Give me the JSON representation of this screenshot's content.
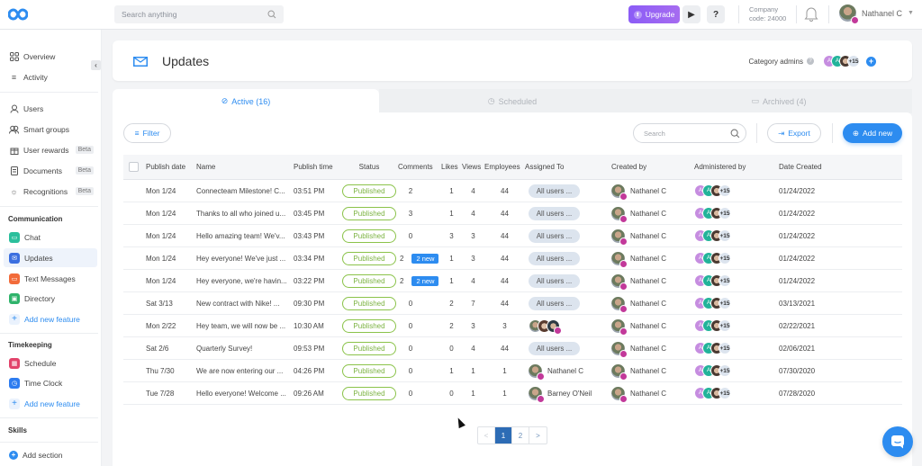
{
  "topbar": {
    "search_placeholder": "Search anything",
    "upgrade_label": "Upgrade",
    "play_label": "▶",
    "help_label": "?",
    "company_label": "Company",
    "company_code": "code: 24000",
    "user_name": "Nathanel C"
  },
  "sidebar": {
    "collapse_icon": "‹",
    "top_items": [
      {
        "label": "Overview",
        "icon": "grid-icon"
      },
      {
        "label": "Activity",
        "icon": "list-icon"
      }
    ],
    "admin_items": [
      {
        "label": "Users",
        "icon": "user-icon"
      },
      {
        "label": "Smart groups",
        "icon": "users-icon"
      },
      {
        "label": "User rewards",
        "icon": "gift-icon",
        "badge": "Beta"
      },
      {
        "label": "Documents",
        "icon": "document-icon",
        "badge": "Beta"
      },
      {
        "label": "Recognitions",
        "icon": "award-icon",
        "badge": "Beta"
      }
    ],
    "communication": {
      "title": "Communication",
      "items": [
        {
          "label": "Chat",
          "color": "#2bbf9c"
        },
        {
          "label": "Updates",
          "color": "#3b6fe0",
          "active": true
        },
        {
          "label": "Text Messages",
          "color": "#f26b3a"
        },
        {
          "label": "Directory",
          "color": "#2fb36b"
        }
      ],
      "add_label": "Add new feature"
    },
    "timekeeping": {
      "title": "Timekeeping",
      "items": [
        {
          "label": "Schedule",
          "color": "#e2436b"
        },
        {
          "label": "Time Clock",
          "color": "#2d7cf0"
        }
      ],
      "add_label": "Add new feature"
    },
    "skills": {
      "title": "Skills"
    },
    "add_section_label": "Add section"
  },
  "header": {
    "title": "Updates",
    "category_admins_label": "Category admins",
    "admins_more": "+15"
  },
  "tabs": [
    {
      "label": "Active (16)",
      "active": true
    },
    {
      "label": "Scheduled",
      "active": false
    },
    {
      "label": "Archived (4)",
      "active": false
    }
  ],
  "toolbar": {
    "filter_label": "Filter",
    "search_placeholder": "Search",
    "export_label": "Export",
    "add_new_label": "Add new"
  },
  "table": {
    "columns": [
      "Publish date",
      "Name",
      "Publish time",
      "Status",
      "Comments",
      "Likes",
      "Views",
      "Employees",
      "Assigned To",
      "Created by",
      "Administered by",
      "Date Created"
    ],
    "rows": [
      {
        "date": "Mon 1/24",
        "name": "Connecteam Milestone! C...",
        "time": "03:51 PM",
        "status": "Published",
        "comments": "2",
        "new": "",
        "likes": "1",
        "views": "4",
        "employees": "44",
        "assigned": "All users ...",
        "assigned_type": "pill",
        "created_by": "Nathanel C",
        "admin_more": "+15",
        "created": "01/24/2022"
      },
      {
        "date": "Mon 1/24",
        "name": "Thanks to all who joined u...",
        "time": "03:45 PM",
        "status": "Published",
        "comments": "3",
        "new": "",
        "likes": "1",
        "views": "4",
        "employees": "44",
        "assigned": "All users ...",
        "assigned_type": "pill",
        "created_by": "Nathanel C",
        "admin_more": "+15",
        "created": "01/24/2022"
      },
      {
        "date": "Mon 1/24",
        "name": "Hello amazing team! We'v...",
        "time": "03:43 PM",
        "status": "Published",
        "comments": "0",
        "new": "",
        "likes": "3",
        "views": "3",
        "employees": "44",
        "assigned": "All users ...",
        "assigned_type": "pill",
        "created_by": "Nathanel C",
        "admin_more": "+15",
        "created": "01/24/2022"
      },
      {
        "date": "Mon 1/24",
        "name": "Hey everyone! We've just ...",
        "time": "03:34 PM",
        "status": "Published",
        "comments": "2",
        "new": "2 new",
        "likes": "1",
        "views": "3",
        "employees": "44",
        "assigned": "All users ...",
        "assigned_type": "pill",
        "created_by": "Nathanel C",
        "admin_more": "+15",
        "created": "01/24/2022"
      },
      {
        "date": "Mon 1/24",
        "name": "Hey everyone, we're havin...",
        "time": "03:22 PM",
        "status": "Published",
        "comments": "2",
        "new": "2 new",
        "likes": "1",
        "views": "4",
        "employees": "44",
        "assigned": "All users ...",
        "assigned_type": "pill",
        "created_by": "Nathanel C",
        "admin_more": "+15",
        "created": "01/24/2022"
      },
      {
        "date": "Sat 3/13",
        "name": "New contract with Nike! ...",
        "time": "09:30 PM",
        "status": "Published",
        "comments": "0",
        "new": "",
        "likes": "2",
        "views": "7",
        "employees": "44",
        "assigned": "All users ...",
        "assigned_type": "pill",
        "created_by": "Nathanel C",
        "admin_more": "+15",
        "created": "03/13/2021"
      },
      {
        "date": "Mon 2/22",
        "name": "Hey team, we will now be ...",
        "time": "10:30 AM",
        "status": "Published",
        "comments": "0",
        "new": "",
        "likes": "2",
        "views": "3",
        "employees": "3",
        "assigned": "",
        "assigned_type": "avatars",
        "created_by": "Nathanel C",
        "admin_more": "+15",
        "created": "02/22/2021"
      },
      {
        "date": "Sat 2/6",
        "name": "Quarterly Survey!",
        "time": "09:53 PM",
        "status": "Published",
        "comments": "0",
        "new": "",
        "likes": "0",
        "views": "4",
        "employees": "44",
        "assigned": "All users ...",
        "assigned_type": "pill",
        "created_by": "Nathanel C",
        "admin_more": "+15",
        "created": "02/06/2021"
      },
      {
        "date": "Thu 7/30",
        "name": "We are now entering our ...",
        "time": "04:26 PM",
        "status": "Published",
        "comments": "0",
        "new": "",
        "likes": "1",
        "views": "1",
        "employees": "1",
        "assigned": "Nathanel C",
        "assigned_type": "person",
        "created_by": "Nathanel C",
        "admin_more": "+15",
        "created": "07/30/2020"
      },
      {
        "date": "Tue 7/28",
        "name": "Hello everyone! Welcome ...",
        "time": "09:26 AM",
        "status": "Published",
        "comments": "0",
        "new": "",
        "likes": "0",
        "views": "1",
        "employees": "1",
        "assigned": "Barney O'Neil",
        "assigned_type": "person",
        "created_by": "Nathanel C",
        "admin_more": "+15",
        "created": "07/28/2020"
      }
    ]
  },
  "pagination": {
    "prev": "<",
    "pages": [
      "1",
      "2"
    ],
    "current": "1",
    "next": ">"
  },
  "colors": {
    "accent": "#2d8cf0",
    "upgrade": "#8b5cf6",
    "published": "#7cb342",
    "admin_a1": "#c68de0",
    "admin_a2": "#22b39a"
  }
}
